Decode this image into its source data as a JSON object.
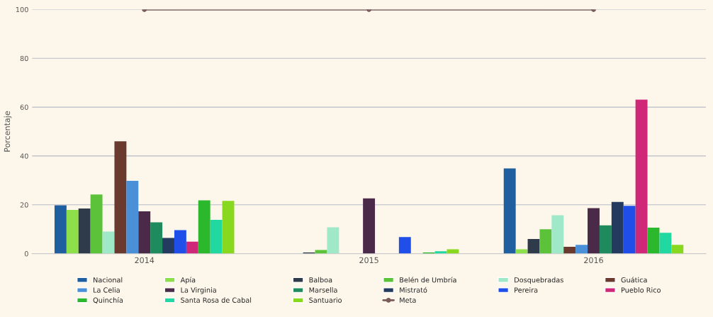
{
  "chart_data": {
    "type": "bar",
    "ylabel": "Porcentaje",
    "categories": [
      "2014",
      "2015",
      "2016"
    ],
    "ylim": [
      0,
      100
    ],
    "yticks": [
      0,
      20,
      40,
      60,
      80,
      100
    ],
    "grid": "y",
    "legend": "bottom",
    "series": [
      {
        "name": "Nacional",
        "color": "#1f5fa0",
        "values": [
          19.8,
          null,
          34.9
        ]
      },
      {
        "name": "Apía",
        "color": "#8ee04a",
        "values": [
          17.9,
          null,
          1.8
        ]
      },
      {
        "name": "Balboa",
        "color": "#2f3a4a",
        "values": [
          18.5,
          0.5,
          6.0
        ]
      },
      {
        "name": "Belén de Umbría",
        "color": "#5cc23a",
        "values": [
          24.2,
          1.5,
          10.0
        ]
      },
      {
        "name": "Dosquebradas",
        "color": "#9fe8c8",
        "values": [
          9.0,
          10.8,
          15.7
        ]
      },
      {
        "name": "Guática",
        "color": "#6b3a2e",
        "values": [
          46.0,
          null,
          2.8
        ]
      },
      {
        "name": "La Celia",
        "color": "#4a90d9",
        "values": [
          29.8,
          null,
          3.6
        ]
      },
      {
        "name": "La Virginia",
        "color": "#4a2a48",
        "values": [
          17.3,
          22.6,
          18.6
        ]
      },
      {
        "name": "Marsella",
        "color": "#1f8a5e",
        "values": [
          12.8,
          null,
          11.6
        ]
      },
      {
        "name": "Mistrató",
        "color": "#243a5e",
        "values": [
          6.4,
          null,
          21.2
        ]
      },
      {
        "name": "Pereira",
        "color": "#1f4ee8",
        "values": [
          9.6,
          6.8,
          19.6
        ]
      },
      {
        "name": "Pueblo Rico",
        "color": "#d02878",
        "values": [
          4.9,
          null,
          63.1
        ]
      },
      {
        "name": "Quinchía",
        "color": "#2cb82c",
        "values": [
          21.8,
          0.5,
          10.6
        ]
      },
      {
        "name": "Santa Rosa de Cabal",
        "color": "#20d8a0",
        "values": [
          13.8,
          1.0,
          8.5
        ]
      },
      {
        "name": "Santuario",
        "color": "#88d820",
        "values": [
          21.6,
          1.8,
          3.6
        ]
      },
      {
        "name": "Meta",
        "color": "#7a5a5a",
        "type": "line",
        "marker": "circle",
        "values": [
          100,
          100,
          100
        ]
      }
    ]
  }
}
